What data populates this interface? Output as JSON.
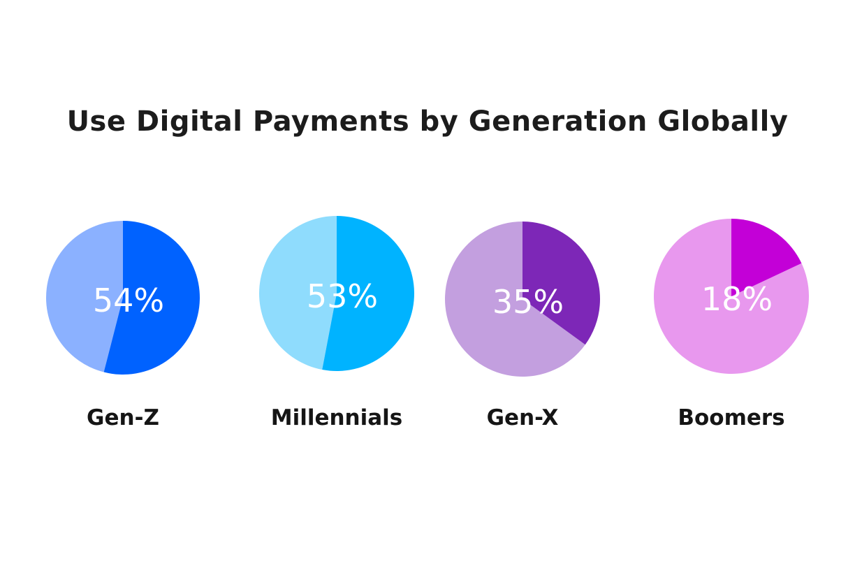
{
  "chart_data": {
    "type": "pie",
    "title": "Use Digital Payments by Generation Globally",
    "charts": [
      {
        "category": "Gen-Z",
        "value": 54,
        "value_label": "54%",
        "color": "#0062ff",
        "remainder_color": "#8bb1ff"
      },
      {
        "category": "Millennials",
        "value": 53,
        "value_label": "53%",
        "color": "#00b3ff",
        "remainder_color": "#8fdcfd"
      },
      {
        "category": "Gen-X",
        "value": 35,
        "value_label": "35%",
        "color": "#7d27b7",
        "remainder_color": "#c39fdf"
      },
      {
        "category": "Boomers",
        "value": 18,
        "value_label": "18%",
        "color": "#c300d7",
        "remainder_color": "#e898ee"
      }
    ]
  }
}
